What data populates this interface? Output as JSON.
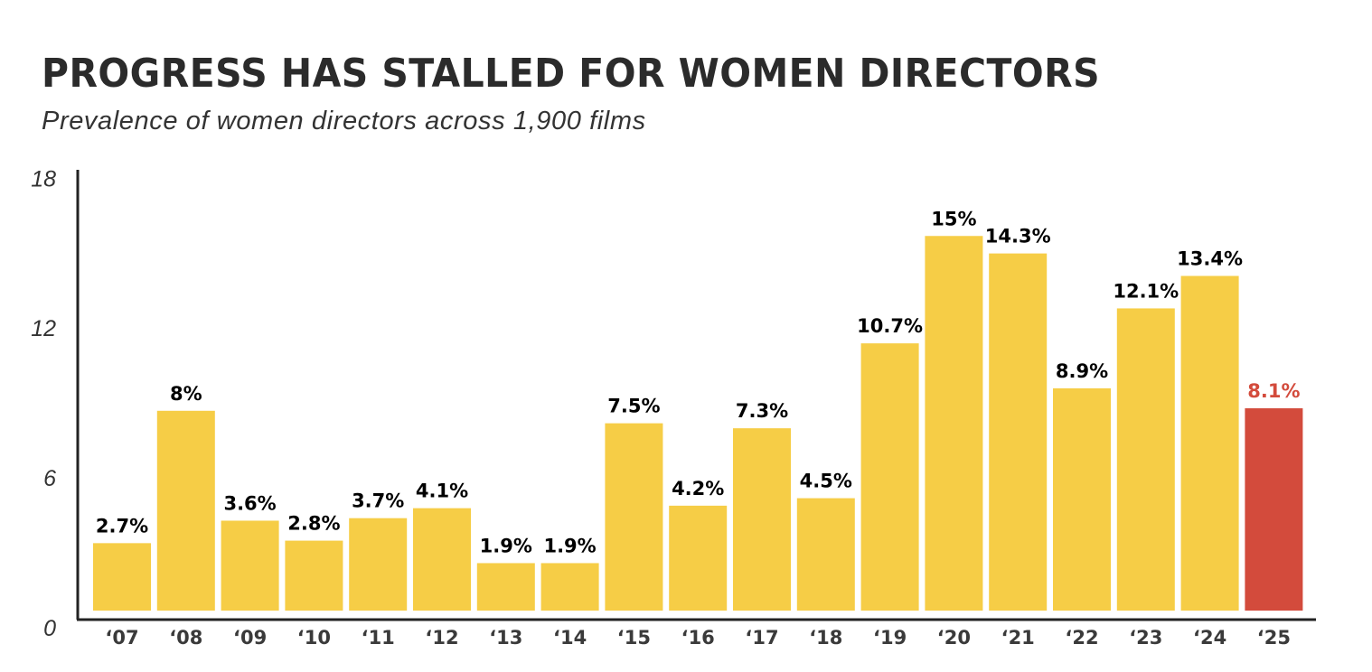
{
  "chart_data": {
    "type": "bar",
    "title": "PROGRESS HAS STALLED FOR WOMEN DIRECTORS",
    "subtitle": "Prevalence of women directors across 1,900 films",
    "xlabel": "",
    "ylabel": "",
    "ylim": [
      0,
      18
    ],
    "yticks": [
      0,
      6,
      12,
      18
    ],
    "grid": false,
    "categories": [
      "‘07",
      "‘08",
      "‘09",
      "‘10",
      "‘11",
      "‘12",
      "‘13",
      "‘14",
      "‘15",
      "‘16",
      "‘17",
      "‘18",
      "‘19",
      "‘20",
      "‘21",
      "‘22",
      "‘23",
      "‘24",
      "‘25"
    ],
    "values": [
      2.7,
      8,
      3.6,
      2.8,
      3.7,
      4.1,
      1.9,
      1.9,
      7.5,
      4.2,
      7.3,
      4.5,
      10.7,
      15,
      14.3,
      8.9,
      12.1,
      13.4,
      8.1
    ],
    "data_labels": [
      "2.7%",
      "8%",
      "3.6%",
      "2.8%",
      "3.7%",
      "4.1%",
      "1.9%",
      "1.9%",
      "7.5%",
      "4.2%",
      "7.3%",
      "4.5%",
      "10.7%",
      "15%",
      "14.3%",
      "8.9%",
      "12.1%",
      "13.4%",
      "8.1%"
    ],
    "colors": {
      "bar": "#f6cd46",
      "highlight": "#d34b3c",
      "label": "#000000",
      "highlight_label": "#d34b3c",
      "axis": "#222222"
    },
    "highlight_category": "‘25"
  }
}
